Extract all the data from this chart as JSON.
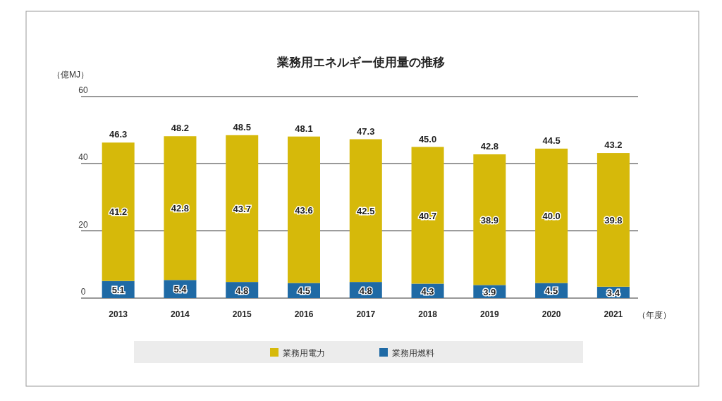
{
  "chart_data": {
    "type": "bar",
    "title": "業務用エネルギー使用量の推移",
    "ylabel": "（億MJ）",
    "xlabel": "（年度）",
    "categories": [
      "2013",
      "2014",
      "2015",
      "2016",
      "2017",
      "2018",
      "2019",
      "2020",
      "2021"
    ],
    "stacked": true,
    "ylim": [
      0,
      60
    ],
    "yticks": [
      0,
      20,
      40,
      60
    ],
    "grid": "y",
    "legend": "bottom",
    "series": [
      {
        "name": "業務用燃料",
        "color": "#1f6aa5",
        "values": [
          5.1,
          5.4,
          4.8,
          4.5,
          4.8,
          4.3,
          3.9,
          4.5,
          3.4
        ],
        "value_labels": [
          "5.1",
          "5.4",
          "4.8",
          "4.5",
          "4.8",
          "4.3",
          "3.9",
          "4.5",
          "3.4"
        ]
      },
      {
        "name": "業務用電力",
        "color": "#d6b90a",
        "values": [
          41.2,
          42.8,
          43.7,
          43.6,
          42.5,
          40.7,
          38.9,
          40.0,
          39.8
        ],
        "value_labels": [
          "41.2",
          "42.8",
          "43.7",
          "43.6",
          "42.5",
          "40.7",
          "38.9",
          "40.0",
          "39.8"
        ]
      }
    ],
    "totals": [
      "46.3",
      "48.2",
      "48.5",
      "48.1",
      "47.3",
      "45.0",
      "42.8",
      "44.5",
      "43.2"
    ]
  }
}
